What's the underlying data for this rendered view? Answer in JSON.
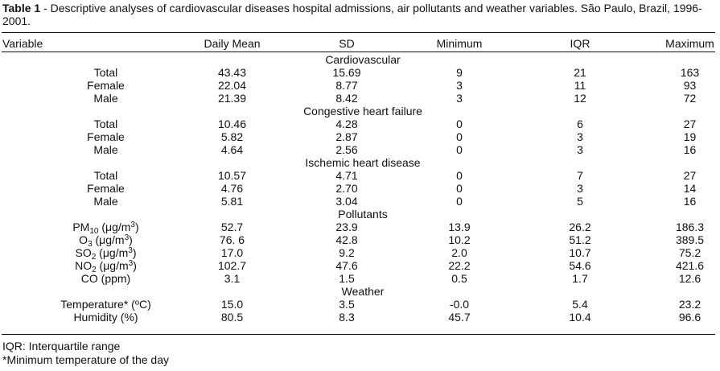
{
  "caption": {
    "label": "Table 1",
    "text": " - Descriptive analyses of cardiovascular diseases hospital admissions, air pollutants and weather variables. São Paulo, Brazil, 1996-2001."
  },
  "table": {
    "headers": [
      "Variable",
      "Daily Mean",
      "SD",
      "Minimum",
      "IQR",
      "Maximum"
    ],
    "groups": [
      {
        "name": "Cardiovascular",
        "rows": [
          {
            "label": "Total",
            "values": [
              "43.43",
              "15.69",
              "9",
              "21",
              "163"
            ]
          },
          {
            "label": "Female",
            "values": [
              "22.04",
              "8.77",
              "3",
              "11",
              "93"
            ]
          },
          {
            "label": "Male",
            "values": [
              "21.39",
              "8.42",
              "3",
              "12",
              "72"
            ]
          }
        ]
      },
      {
        "name": "Congestive heart failure",
        "rows": [
          {
            "label": "Total",
            "values": [
              "10.46",
              "4.28",
              "0",
              "6",
              "27"
            ]
          },
          {
            "label": "Female",
            "values": [
              "5.82",
              "2.87",
              "0",
              "3",
              "19"
            ]
          },
          {
            "label": "Male",
            "values": [
              "4.64",
              "2.56",
              "0",
              "3",
              "16"
            ]
          }
        ]
      },
      {
        "name": "Ischemic heart disease",
        "rows": [
          {
            "label": "Total",
            "values": [
              "10.57",
              "4.71",
              "0",
              "7",
              "27"
            ]
          },
          {
            "label": "Female",
            "values": [
              "4.76",
              "2.70",
              "0",
              "3",
              "14"
            ]
          },
          {
            "label": "Male",
            "values": [
              "5.81",
              "3.04",
              "0",
              "5",
              "16"
            ]
          }
        ]
      },
      {
        "name": "Pollutants",
        "rows": [
          {
            "label": "PM10 (μg/m3)",
            "values": [
              "52.7",
              "23.9",
              "13.9",
              "26.2",
              "186.3"
            ]
          },
          {
            "label": "O3 (μg/m3)",
            "values": [
              "76. 6",
              "42.8",
              "10.2",
              "51.2",
              "389.5"
            ]
          },
          {
            "label": "SO2 (μg/m3)",
            "values": [
              "17.0",
              "9.2",
              "2.0",
              "10.7",
              "75.2"
            ]
          },
          {
            "label": "NO2 (μg/m3)",
            "values": [
              "102.7",
              "47.6",
              "22.2",
              "54.6",
              "421.6"
            ]
          },
          {
            "label": "CO (ppm)",
            "values": [
              "3.1",
              "1.5",
              "0.5",
              "1.7",
              "12.6"
            ]
          }
        ]
      },
      {
        "name": "Weather",
        "rows": [
          {
            "label": "Temperature* (ºC)",
            "values": [
              "15.0",
              "3.5",
              "-0.0",
              "5.4",
              "23.2"
            ]
          },
          {
            "label": "Humidity (%)",
            "values": [
              "80.5",
              "8.3",
              "45.7",
              "10.4",
              "96.6"
            ]
          }
        ]
      }
    ]
  },
  "footnotes": [
    "IQR: Interquartile range",
    "*Minimum temperature of the day"
  ]
}
